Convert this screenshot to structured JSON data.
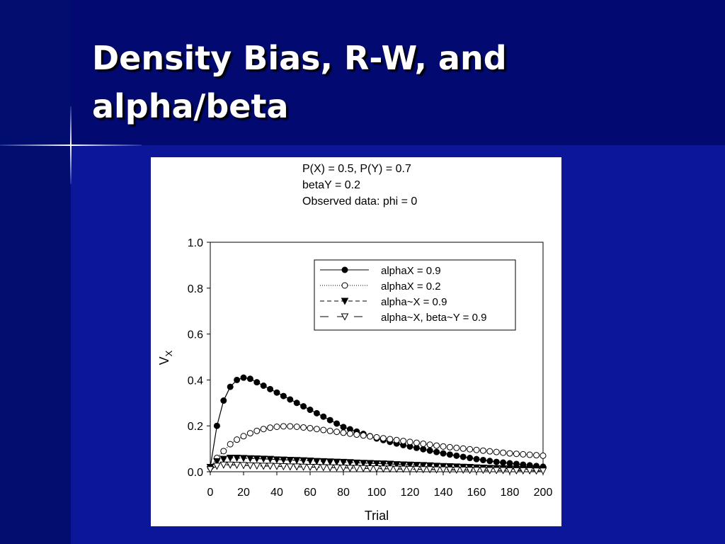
{
  "title": "Density Bias, R-W, and alpha/beta",
  "chart_data": {
    "type": "line",
    "annotations": [
      "P(X) = 0.5, P(Y) = 0.7",
      "betaY = 0.2",
      "Observed data: phi = 0"
    ],
    "xlabel": "Trial",
    "ylabel": "V",
    "ylabel_subscript": "X",
    "xlim": [
      0,
      200
    ],
    "ylim": [
      0,
      1
    ],
    "xticks": [
      0,
      20,
      40,
      60,
      80,
      100,
      120,
      140,
      160,
      180,
      200
    ],
    "yticks": [
      {
        "value": 0,
        "label": "0.0"
      },
      0.2,
      0.4,
      0.6,
      0.8,
      {
        "value": 1,
        "label": "1.0"
      }
    ],
    "grid": false,
    "legend": "upper right",
    "x": [
      0,
      4,
      8,
      12,
      16,
      20,
      24,
      28,
      32,
      36,
      40,
      44,
      48,
      52,
      56,
      60,
      64,
      68,
      72,
      76,
      80,
      84,
      88,
      92,
      96,
      100,
      104,
      108,
      112,
      116,
      120,
      124,
      128,
      132,
      136,
      140,
      144,
      148,
      152,
      156,
      160,
      164,
      168,
      172,
      176,
      180,
      184,
      188,
      192,
      196,
      200
    ],
    "series": [
      {
        "name": "alphaX = 0.9",
        "color": "#000000",
        "line_style": "solid",
        "marker": "circle-filled",
        "values": [
          0.02,
          0.2,
          0.31,
          0.37,
          0.4,
          0.41,
          0.405,
          0.39,
          0.375,
          0.36,
          0.345,
          0.33,
          0.315,
          0.3,
          0.285,
          0.27,
          0.255,
          0.24,
          0.225,
          0.21,
          0.195,
          0.185,
          0.175,
          0.165,
          0.155,
          0.145,
          0.138,
          0.13,
          0.123,
          0.116,
          0.11,
          0.104,
          0.098,
          0.092,
          0.086,
          0.08,
          0.075,
          0.07,
          0.065,
          0.06,
          0.055,
          0.051,
          0.047,
          0.043,
          0.04,
          0.037,
          0.034,
          0.031,
          0.028,
          0.025,
          0.022
        ]
      },
      {
        "name": "alphaX = 0.2",
        "color": "#000000",
        "line_style": "dotted",
        "marker": "circle-open",
        "values": [
          0.02,
          0.06,
          0.09,
          0.12,
          0.14,
          0.155,
          0.168,
          0.178,
          0.186,
          0.192,
          0.196,
          0.198,
          0.198,
          0.196,
          0.193,
          0.19,
          0.186,
          0.182,
          0.178,
          0.174,
          0.17,
          0.166,
          0.162,
          0.158,
          0.154,
          0.15,
          0.146,
          0.142,
          0.138,
          0.134,
          0.13,
          0.126,
          0.122,
          0.118,
          0.114,
          0.11,
          0.107,
          0.104,
          0.101,
          0.098,
          0.095,
          0.092,
          0.089,
          0.086,
          0.083,
          0.08,
          0.078,
          0.076,
          0.074,
          0.072,
          0.07
        ]
      },
      {
        "name": "alpha~X = 0.9",
        "color": "#000000",
        "line_style": "dashed",
        "marker": "triangle-down-filled",
        "values": [
          0.02,
          0.045,
          0.055,
          0.06,
          0.06,
          0.059,
          0.058,
          0.057,
          0.056,
          0.055,
          0.053,
          0.052,
          0.051,
          0.05,
          0.049,
          0.048,
          0.046,
          0.045,
          0.044,
          0.043,
          0.042,
          0.041,
          0.039,
          0.038,
          0.037,
          0.036,
          0.035,
          0.034,
          0.032,
          0.031,
          0.03,
          0.029,
          0.028,
          0.027,
          0.025,
          0.024,
          0.023,
          0.022,
          0.021,
          0.02,
          0.018,
          0.017,
          0.016,
          0.015,
          0.014,
          0.013,
          0.012,
          0.011,
          0.01,
          0.01,
          0.009
        ]
      },
      {
        "name": "alpha~X, beta~Y = 0.9",
        "color": "#000000",
        "line_style": "long-dash",
        "marker": "triangle-down-open",
        "values": [
          0.01,
          0.025,
          0.03,
          0.03,
          0.029,
          0.028,
          0.027,
          0.026,
          0.025,
          0.025,
          0.024,
          0.023,
          0.022,
          0.022,
          0.021,
          0.02,
          0.02,
          0.019,
          0.018,
          0.018,
          0.017,
          0.016,
          0.016,
          0.015,
          0.014,
          0.014,
          0.013,
          0.013,
          0.012,
          0.012,
          0.011,
          0.011,
          0.01,
          0.01,
          0.009,
          0.009,
          0.008,
          0.008,
          0.008,
          0.007,
          0.007,
          0.007,
          0.006,
          0.006,
          0.006,
          0.005,
          0.005,
          0.005,
          0.005,
          0.004,
          0.004
        ]
      }
    ]
  }
}
